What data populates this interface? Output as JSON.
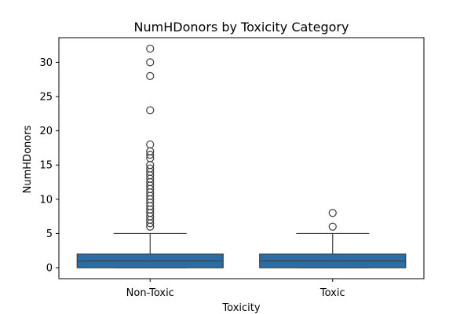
{
  "chart_data": {
    "type": "box",
    "title": "NumHDonors by Toxicity Category",
    "xlabel": "Toxicity",
    "ylabel": "NumHDonors",
    "categories": [
      "Non-Toxic",
      "Toxic"
    ],
    "ylim": [
      -1.6,
      33.6
    ],
    "yticks": [
      0,
      5,
      10,
      15,
      20,
      25,
      30
    ],
    "grid": false,
    "box_color": "#2b6ea6",
    "series": [
      {
        "category": "Non-Toxic",
        "whisker_low": 0,
        "q1": 0,
        "median": 1,
        "q3": 2,
        "whisker_high": 5,
        "outliers": [
          6,
          6.5,
          7,
          7.5,
          8,
          8.5,
          9,
          9.5,
          10,
          10.5,
          11,
          11.5,
          12,
          12.5,
          13,
          13.5,
          14,
          14.5,
          15,
          16,
          16.5,
          17,
          18,
          23,
          28,
          30,
          32
        ]
      },
      {
        "category": "Toxic",
        "whisker_low": 0,
        "q1": 0,
        "median": 1,
        "q3": 2,
        "whisker_high": 5,
        "outliers": [
          6,
          8
        ]
      }
    ]
  }
}
